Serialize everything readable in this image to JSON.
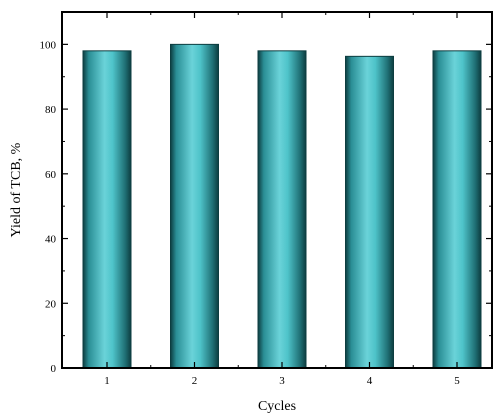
{
  "chart_data": {
    "type": "bar",
    "categories": [
      "1",
      "2",
      "3",
      "4",
      "5"
    ],
    "values": [
      98,
      100,
      98,
      96.3,
      98
    ],
    "xlabel": "Cycles",
    "ylabel": "Yield of TCB, %",
    "ylim": [
      0,
      110
    ],
    "yticks": [
      0,
      20,
      40,
      60,
      80,
      100
    ],
    "grid": false,
    "bar_color": "#4ec3c9",
    "bar_edge_color": "#0d3d40"
  }
}
